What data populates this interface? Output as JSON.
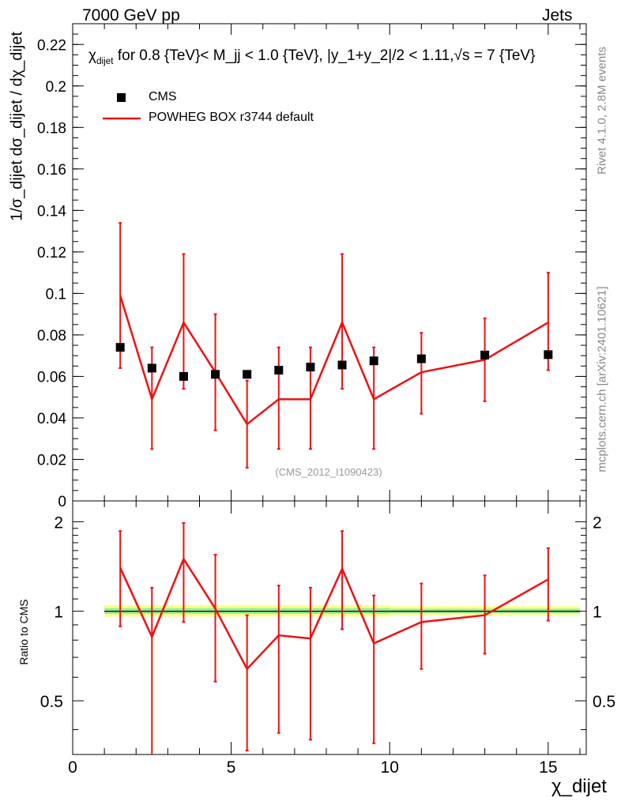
{
  "header": {
    "energy": "7000 GeV pp",
    "process": "Jets",
    "rivet": "Rivet 4.1.0,  2.8M events",
    "mcplots": "mcplots.cern.ch [arXiv:2401.10621]",
    "analysis": "(CMS_2012_I1090423)"
  },
  "colors": {
    "data": "#000000",
    "mc": "#ee1111",
    "band_outer": "#ffff88",
    "band_inner": "#99ee99"
  },
  "chart_data": [
    {
      "type": "scatter",
      "panel": "main",
      "title": "for 0.8 {TeV}< M_jj < 1.0 {TeV}, |y_1+y_2|/2 < 1.11,√s = 7 {TeV}",
      "title_prefix": "χ",
      "title_prefix_sub": "dijet",
      "ylabel": "1/σ_dijet dσ_dijet / dχ_dijet",
      "ylim": [
        0,
        0.23
      ],
      "yticks": [
        0,
        0.02,
        0.04,
        0.06,
        0.08,
        0.1,
        0.12,
        0.14,
        0.16,
        0.18,
        0.2,
        0.22
      ],
      "ytick_labels": [
        "0",
        "0.02",
        "0.04",
        "0.06",
        "0.08",
        "0.1",
        "0.12",
        "0.14",
        "0.16",
        "0.18",
        "0.2",
        "0.22"
      ],
      "xlim": [
        0,
        16.2
      ],
      "legend_position": "top-left",
      "series": [
        {
          "name": "CMS",
          "style": "markers",
          "x": [
            1.5,
            2.5,
            3.5,
            4.5,
            5.5,
            6.5,
            7.5,
            8.5,
            9.5,
            11,
            13,
            15
          ],
          "y": [
            0.074,
            0.064,
            0.06,
            0.061,
            0.061,
            0.063,
            0.0645,
            0.0655,
            0.0675,
            0.0685,
            0.0703,
            0.0705
          ]
        },
        {
          "name": "POWHEG BOX r3744 default",
          "style": "line",
          "x_edges": [
            1,
            2,
            3,
            4,
            5,
            6,
            7,
            8,
            9,
            10,
            12,
            14,
            16
          ],
          "x": [
            1.5,
            2.5,
            3.5,
            4.5,
            5.5,
            6.5,
            7.5,
            8.5,
            9.5,
            11,
            13,
            15
          ],
          "y": [
            0.099,
            0.049,
            0.086,
            0.062,
            0.037,
            0.049,
            0.049,
            0.086,
            0.049,
            0.062,
            0.068,
            0.086
          ],
          "err_low": [
            0.035,
            0.024,
            0.032,
            0.028,
            0.021,
            0.024,
            0.024,
            0.032,
            0.024,
            0.02,
            0.02,
            0.023
          ],
          "err_high": [
            0.035,
            0.025,
            0.033,
            0.028,
            0.021,
            0.025,
            0.025,
            0.033,
            0.025,
            0.019,
            0.02,
            0.024
          ]
        }
      ]
    },
    {
      "type": "line",
      "panel": "ratio",
      "ylabel": "Ratio to CMS",
      "xlabel": "χ_dijet",
      "ylim": [
        0.33,
        2.35
      ],
      "yscale": "log",
      "yticks": [
        0.5,
        1,
        2
      ],
      "ytick_labels": [
        "0.5",
        "1",
        "2"
      ],
      "xlim": [
        0,
        16.2
      ],
      "xticks": [
        0,
        5,
        10,
        15
      ],
      "xtick_labels": [
        "0",
        "5",
        "10",
        "15"
      ],
      "reference_line": 1,
      "band_edges": [
        1,
        10,
        16
      ],
      "band_outer": [
        [
          0.96,
          1.05
        ],
        [
          0.97,
          1.04
        ]
      ],
      "band_inner": [
        [
          0.98,
          1.025
        ],
        [
          0.985,
          1.02
        ]
      ],
      "series": [
        {
          "name": "POWHEG BOX r3744 default",
          "x": [
            1.5,
            2.5,
            3.5,
            4.5,
            5.5,
            6.5,
            7.5,
            8.5,
            9.5,
            11,
            13,
            15
          ],
          "y": [
            1.4,
            0.82,
            1.5,
            1.02,
            0.64,
            0.83,
            0.81,
            1.39,
            0.78,
            0.92,
            0.97,
            1.28
          ],
          "err_low": [
            0.51,
            0.5,
            0.58,
            0.44,
            0.3,
            0.44,
            0.44,
            0.52,
            0.42,
            0.28,
            0.25,
            0.35
          ],
          "err_high": [
            0.46,
            0.38,
            0.48,
            0.53,
            0.33,
            0.39,
            0.39,
            0.47,
            0.35,
            0.32,
            0.35,
            0.35
          ]
        }
      ]
    }
  ]
}
